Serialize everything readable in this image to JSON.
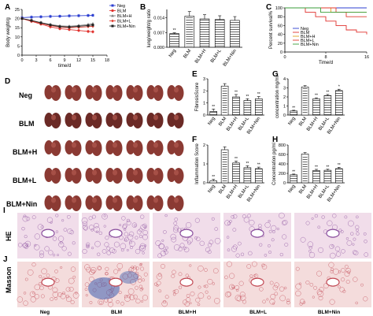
{
  "panel_labels": {
    "a": "A",
    "b": "B",
    "c": "C",
    "d": "D",
    "e": "E",
    "f": "F",
    "g": "G",
    "h": "H",
    "i": "I",
    "j": "J"
  },
  "groups": [
    "Neg",
    "BLM",
    "BLM+H",
    "BLM+L",
    "BLM+Nin"
  ],
  "photo_rows": [
    "Neg",
    "BLM",
    "BLM+H",
    "BLM+L",
    "BLM+Nin"
  ],
  "histology": {
    "rows": [
      "HE",
      "Masson"
    ],
    "cols": [
      "Neg",
      "BLM",
      "BLM+H",
      "BLM+L",
      "BLM+Nin"
    ]
  },
  "colors": {
    "neg": "#2c3fd1",
    "blm": "#e0322e",
    "blmh": "#7a7a7a",
    "blml": "#e03a2c",
    "nin": "#222222",
    "he_bg": "#f1ddea",
    "he_cell": "#8a4f9e",
    "masson_bg": "#f4dcdc",
    "masson_cell": "#c24a55",
    "masson_blue": "#3e5fb0",
    "lung": "#8b3a33"
  },
  "chart_data": [
    {
      "panel": "A",
      "type": "line",
      "xlabel": "time/d",
      "ylabel": "Body weight/g",
      "xticks": [
        0,
        3,
        6,
        9,
        12,
        15,
        18
      ],
      "yticks": [
        0,
        5,
        10,
        15,
        20,
        25
      ],
      "xlim": [
        0,
        18
      ],
      "ylim": [
        0,
        25
      ],
      "x": [
        0,
        2,
        4,
        6,
        8,
        10,
        12,
        14,
        15
      ],
      "series": [
        {
          "name": "Neg",
          "values": [
            20.5,
            20.8,
            21,
            21.2,
            21.3,
            21.5,
            21.6,
            21.7,
            21.8
          ]
        },
        {
          "name": "BLM",
          "values": [
            20,
            18.5,
            17,
            15.5,
            14.5,
            14,
            13.5,
            13,
            12.8
          ]
        },
        {
          "name": "BLM+H",
          "values": [
            20,
            19,
            17.8,
            16.8,
            16,
            15.8,
            16.2,
            16.8,
            17.2
          ]
        },
        {
          "name": "BLM+L",
          "values": [
            20,
            18.8,
            17.5,
            16.2,
            15.4,
            15,
            15.2,
            15.6,
            15.8
          ]
        },
        {
          "name": "BLM+Nin",
          "values": [
            20,
            19,
            17.7,
            16.5,
            15.6,
            15.4,
            15.8,
            16.2,
            16.5
          ]
        }
      ]
    },
    {
      "panel": "B",
      "type": "bar",
      "ylabel": "lung/weight/g ratio",
      "categories": [
        "Neg",
        "BLM",
        "BLM+H",
        "BLM+L",
        "BLM+Nin"
      ],
      "values": [
        0.0065,
        0.0148,
        0.0135,
        0.0132,
        0.0128
      ],
      "errors": [
        0.0004,
        0.0022,
        0.002,
        0.0018,
        0.0018
      ],
      "ylim": [
        0,
        0.018
      ],
      "yticks": [
        "0.000",
        "0.007",
        "0.014"
      ],
      "ytick_values": [
        0,
        0.007,
        0.014
      ],
      "sig": [
        "**",
        "",
        "",
        "",
        ""
      ]
    },
    {
      "panel": "C",
      "type": "line",
      "xlabel": "Time/d",
      "ylabel": "Percent survival%",
      "xticks": [
        0,
        8,
        16
      ],
      "yticks": [
        0,
        20,
        40,
        60,
        80,
        100
      ],
      "xlim": [
        0,
        16
      ],
      "ylim": [
        0,
        100
      ],
      "series": [
        {
          "name": "Neg",
          "steps": [
            [
              0,
              100
            ],
            [
              16,
              100
            ]
          ]
        },
        {
          "name": "BLM",
          "steps": [
            [
              0,
              100
            ],
            [
              4,
              90
            ],
            [
              6,
              80
            ],
            [
              8,
              70
            ],
            [
              10,
              60
            ],
            [
              12,
              50
            ],
            [
              14,
              45
            ],
            [
              16,
              40
            ]
          ]
        },
        {
          "name": "BLM+H",
          "steps": [
            [
              0,
              100
            ],
            [
              9,
              90
            ],
            [
              16,
              90
            ]
          ]
        },
        {
          "name": "BLM+L",
          "steps": [
            [
              0,
              100
            ],
            [
              10,
              90
            ],
            [
              12,
              80
            ],
            [
              16,
              80
            ]
          ]
        },
        {
          "name": "BLM+Nin",
          "steps": [
            [
              0,
              100
            ],
            [
              7,
              90
            ],
            [
              16,
              90
            ]
          ]
        }
      ]
    },
    {
      "panel": "E",
      "type": "bar",
      "ylabel": "FibrosisScore",
      "categories": [
        "Neg",
        "BLM",
        "BLM+H",
        "BLM+L",
        "BLM+Nin"
      ],
      "values": [
        0.3,
        2.4,
        1.5,
        1.2,
        1.35
      ],
      "errors": [
        0.2,
        0.2,
        0.2,
        0.15,
        0.18
      ],
      "ylim": [
        0,
        3
      ],
      "yticks": [
        "0",
        "1",
        "2",
        "3"
      ],
      "ytick_values": [
        0,
        1,
        2,
        3
      ],
      "sig": [
        "**",
        "",
        "**",
        "**",
        "**"
      ]
    },
    {
      "panel": "F",
      "type": "bar",
      "ylabel": "Inflammation Score",
      "categories": [
        "Neg",
        "BLM",
        "BLM+H",
        "BLM+L",
        "BLM+Nin"
      ],
      "values": [
        0.1,
        1.75,
        1.05,
        0.8,
        0.75
      ],
      "errors": [
        0.08,
        0.15,
        0.1,
        0.1,
        0.08
      ],
      "ylim": [
        0,
        2
      ],
      "yticks": [
        "0",
        "1",
        "2"
      ],
      "ytick_values": [
        0,
        1,
        2
      ],
      "sig": [
        "**",
        "",
        "**",
        "**",
        "**"
      ]
    },
    {
      "panel": "G",
      "type": "bar",
      "ylabel": "concentration mg/ml",
      "categories": [
        "Neg",
        "BLM",
        "BLM+H",
        "BLM+L",
        "BLM+Nin"
      ],
      "values": [
        0.45,
        3.1,
        1.8,
        2.15,
        2.7
      ],
      "errors": [
        0.08,
        0.15,
        0.1,
        0.12,
        0.15
      ],
      "ylim": [
        0,
        4
      ],
      "yticks": [
        "0",
        "1",
        "2",
        "3",
        "4"
      ],
      "ytick_values": [
        0,
        1,
        2,
        3,
        4
      ],
      "sig": [
        "**",
        "",
        "**",
        "**",
        "*"
      ]
    },
    {
      "panel": "H",
      "type": "bar",
      "ylabel": "Concentration pg/ml",
      "categories": [
        "Neg",
        "BLM",
        "BLM+H",
        "BLM+L",
        "BLM+Nin"
      ],
      "values": [
        170,
        610,
        260,
        265,
        300
      ],
      "errors": [
        15,
        30,
        25,
        22,
        28
      ],
      "ylim": [
        0,
        800
      ],
      "yticks": [
        "0",
        "200",
        "400",
        "600",
        "800"
      ],
      "ytick_values": [
        0,
        200,
        400,
        600,
        800
      ],
      "sig": [
        "**",
        "",
        "**",
        "**",
        "**"
      ]
    }
  ]
}
